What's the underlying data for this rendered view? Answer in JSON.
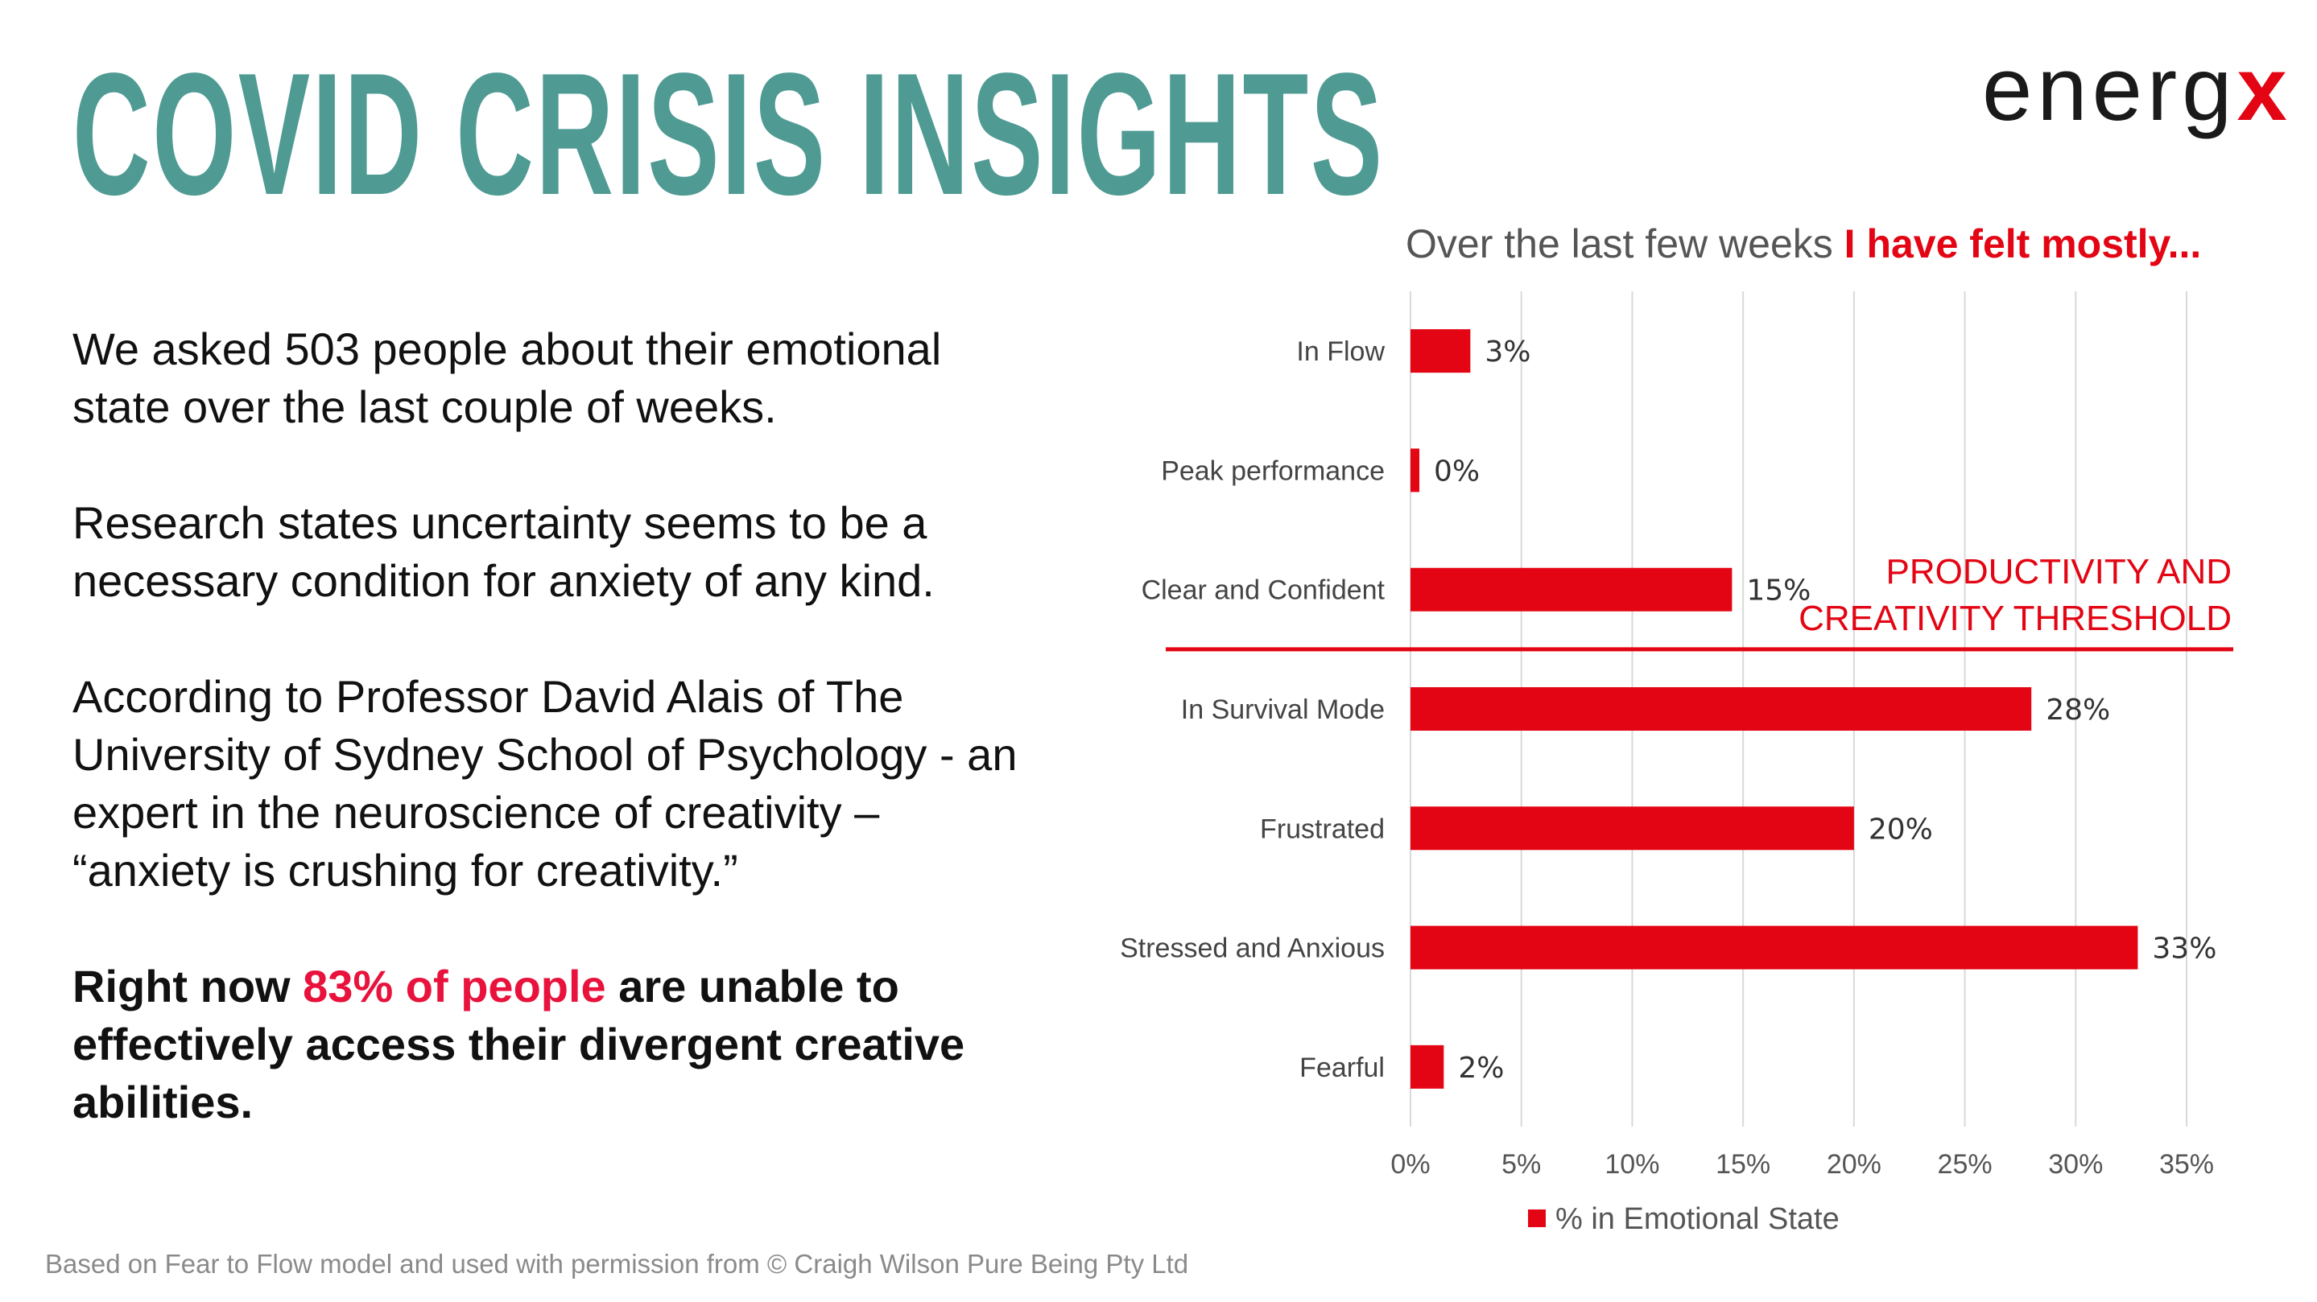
{
  "title": "COVID CRISIS INSIGHTS",
  "logo": {
    "text": "energ",
    "accent": "x"
  },
  "intro": {
    "p1": "We asked 503 people about their emotional state over the last couple of weeks.",
    "p2": "Research states uncertainty seems to be a necessary condition for anxiety of any kind.",
    "p3": "According to Professor David Alais of The University of Sydney School of Psychology - an expert in the neuroscience of creativity – “anxiety is crushing for creativity.”",
    "p4_before": "Right now ",
    "p4_highlight": "83% of people",
    "p4_after": " are unable to effectively access their divergent creative abilities."
  },
  "footer": "Based on Fear to Flow model and used with permission from © Craigh Wilson Pure Being Pty Ltd",
  "colors": {
    "title": "#4f9b94",
    "accent": "#e30513",
    "highlight": "#e8123c"
  },
  "chart_data": {
    "type": "bar",
    "orientation": "horizontal",
    "title_part1": "Over the last few weeks ",
    "title_part2": "I have felt mostly...",
    "categories": [
      "In Flow",
      "Peak performance",
      "Clear and Confident",
      "In Survival Mode",
      "Frustrated",
      "Stressed and Anxious",
      "Fearful"
    ],
    "series": [
      {
        "name": "% in Emotional State",
        "values": [
          2.7,
          0.4,
          14.5,
          28,
          20,
          32.8,
          1.5
        ],
        "labels": [
          "3%",
          "0%",
          "15%",
          "28%",
          "20%",
          "33%",
          "2%"
        ]
      }
    ],
    "xlim": [
      0,
      35
    ],
    "ticks": [
      "0%",
      "5%",
      "10%",
      "15%",
      "20%",
      "25%",
      "30%",
      "35%"
    ],
    "grid": true,
    "legend_position": "bottom",
    "threshold": {
      "label_line1": "PRODUCTIVITY AND",
      "label_line2": "CREATIVITY THRESHOLD",
      "after_category": "Clear and Confident"
    }
  }
}
